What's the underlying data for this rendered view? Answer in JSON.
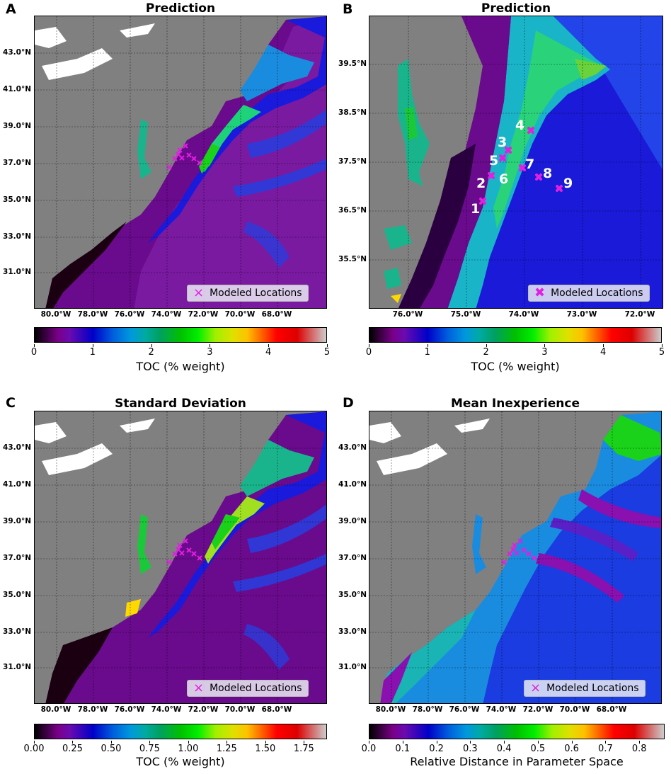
{
  "panels": [
    {
      "letter": "A",
      "title": "Prediction",
      "lat_labels": [
        "43.0°N",
        "41.0°N",
        "39.0°N",
        "37.0°N",
        "35.0°N",
        "33.0°N",
        "31.0°N"
      ],
      "lon_labels": [
        "80.0°W",
        "78.0°W",
        "76.0°W",
        "74.0°W",
        "72.0°W",
        "70.0°W",
        "68.0°W"
      ],
      "legend": "Modeled Locations",
      "colorbar": {
        "ticks": [
          "0",
          "1",
          "2",
          "3",
          "4",
          "5"
        ],
        "label": "TOC (% weight)",
        "cmap": "nipy_spectral"
      }
    },
    {
      "letter": "B",
      "title": "Prediction",
      "lat_labels": [
        "39.5°N",
        "38.5°N",
        "37.5°N",
        "36.5°N",
        "35.5°N"
      ],
      "lon_labels": [
        "76.0°W",
        "75.0°W",
        "74.0°W",
        "73.0°W",
        "72.0°W"
      ],
      "legend": "Modeled Locations",
      "stations": [
        "1",
        "2",
        "3",
        "4",
        "5",
        "6",
        "7",
        "8",
        "9"
      ],
      "colorbar": {
        "ticks": [
          "0",
          "1",
          "2",
          "3",
          "4",
          "5"
        ],
        "label": "TOC (% weight)",
        "cmap": "nipy_spectral"
      }
    },
    {
      "letter": "C",
      "title": "Standard Deviation",
      "lat_labels": [
        "43.0°N",
        "41.0°N",
        "39.0°N",
        "37.0°N",
        "35.0°N",
        "33.0°N",
        "31.0°N"
      ],
      "lon_labels": [
        "80.0°W",
        "78.0°W",
        "76.0°W",
        "74.0°W",
        "72.0°W",
        "70.0°W",
        "68.0°W"
      ],
      "legend": "Modeled Locations",
      "colorbar": {
        "ticks": [
          "0.00",
          "0.25",
          "0.50",
          "0.75",
          "1.00",
          "1.25",
          "1.50",
          "1.75"
        ],
        "label": "TOC (% weight)",
        "cmap": "nipy_spectral"
      }
    },
    {
      "letter": "D",
      "title": "Mean Inexperience",
      "lat_labels": [
        "43.0°N",
        "41.0°N",
        "39.0°N",
        "37.0°N",
        "35.0°N",
        "33.0°N",
        "31.0°N"
      ],
      "lon_labels": [
        "80.0°W",
        "78.0°W",
        "76.0°W",
        "74.0°W",
        "72.0°W",
        "70.0°W",
        "68.0°W"
      ],
      "legend": "Modeled Locations",
      "colorbar": {
        "ticks": [
          "0.0",
          "0.1",
          "0.2",
          "0.3",
          "0.4",
          "0.5",
          "0.6",
          "0.7",
          "0.8"
        ],
        "label": "Relative Distance in Parameter Space",
        "cmap": "nipy_spectral"
      }
    }
  ],
  "colors": {
    "land": "#808080",
    "background": "#ffffff",
    "marker": "#e020e0",
    "great_lakes": "#ffffff"
  }
}
